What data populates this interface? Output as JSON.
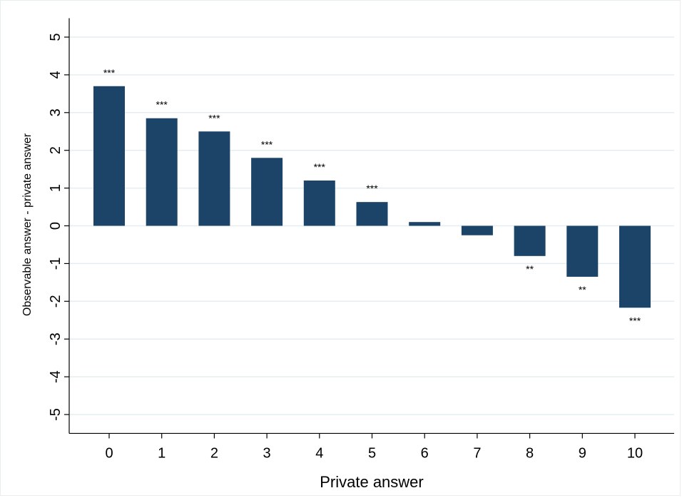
{
  "chart_data": {
    "type": "bar",
    "title": "",
    "xlabel": "Private answer",
    "ylabel": "Observable answer - private answer",
    "categories": [
      "0",
      "1",
      "2",
      "3",
      "4",
      "5",
      "6",
      "7",
      "8",
      "9",
      "10"
    ],
    "values": [
      3.7,
      2.85,
      2.5,
      1.8,
      1.2,
      0.63,
      0.1,
      -0.25,
      -0.8,
      -1.35,
      -2.17
    ],
    "significance": [
      "***",
      "***",
      "***",
      "***",
      "***",
      "***",
      "",
      "",
      "**",
      "**",
      "***"
    ],
    "yticks": [
      5,
      4,
      3,
      2,
      1,
      0,
      -1,
      -2,
      -3,
      -4,
      -5
    ],
    "ylim": [
      -5.5,
      5.5
    ],
    "grid": true,
    "legend": "none",
    "bar_color": "#1b4468",
    "grid_color": "#e4eef0",
    "axis_color": "#000000"
  }
}
